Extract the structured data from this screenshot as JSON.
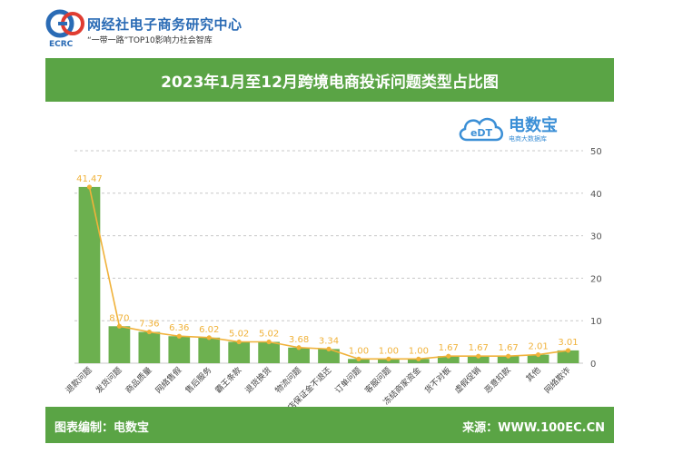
{
  "header": {
    "logo_mark": "EC",
    "logo_en": "ECRC",
    "logo_name": "网经社电子商务研究中心",
    "logo_sub": "“一带一路”TOP10影响力社会智库"
  },
  "watermark": {
    "name": "电数宝",
    "sub": "电商大数据库",
    "mark": "eDT"
  },
  "footer": {
    "left": "图表编制：电数宝",
    "right": "来源：WWW.100EC.CN"
  },
  "colors": {
    "green": "#5aa445",
    "bar": "#6cb04f",
    "line": "#f0b23a",
    "label": "#f0b23a"
  },
  "chart_data": {
    "type": "bar",
    "title": "2023年1月至12月跨境电商投诉问题类型占比图",
    "categories": [
      "退款问题",
      "发货问题",
      "商品质量",
      "网络售假",
      "售后服务",
      "霸王条款",
      "退货换货",
      "物流问题",
      "退店保证金不退还",
      "订单问题",
      "客服问题",
      "冻结商家资金",
      "货不对板",
      "虚假促销",
      "恶意扣款",
      "其他",
      "网络欺诈"
    ],
    "values": [
      41.47,
      8.7,
      7.36,
      6.36,
      6.02,
      5.02,
      5.02,
      3.68,
      3.34,
      1.0,
      1.0,
      1.0,
      1.67,
      1.67,
      1.67,
      2.01,
      3.01
    ],
    "data_labels": [
      "41.47",
      "8.70",
      "7.36",
      "6.36",
      "6.02",
      "5.02",
      "5.02",
      "3.68",
      "3.34",
      "1.00",
      "1.00",
      "1.00",
      "1.67",
      "1.67",
      "1.67",
      "2.01",
      "3.01"
    ],
    "yticks": [
      "0",
      "10",
      "20",
      "30",
      "40",
      "50"
    ],
    "ylim": [
      0,
      50
    ],
    "xlabel": "",
    "ylabel": "",
    "unit": "%"
  }
}
